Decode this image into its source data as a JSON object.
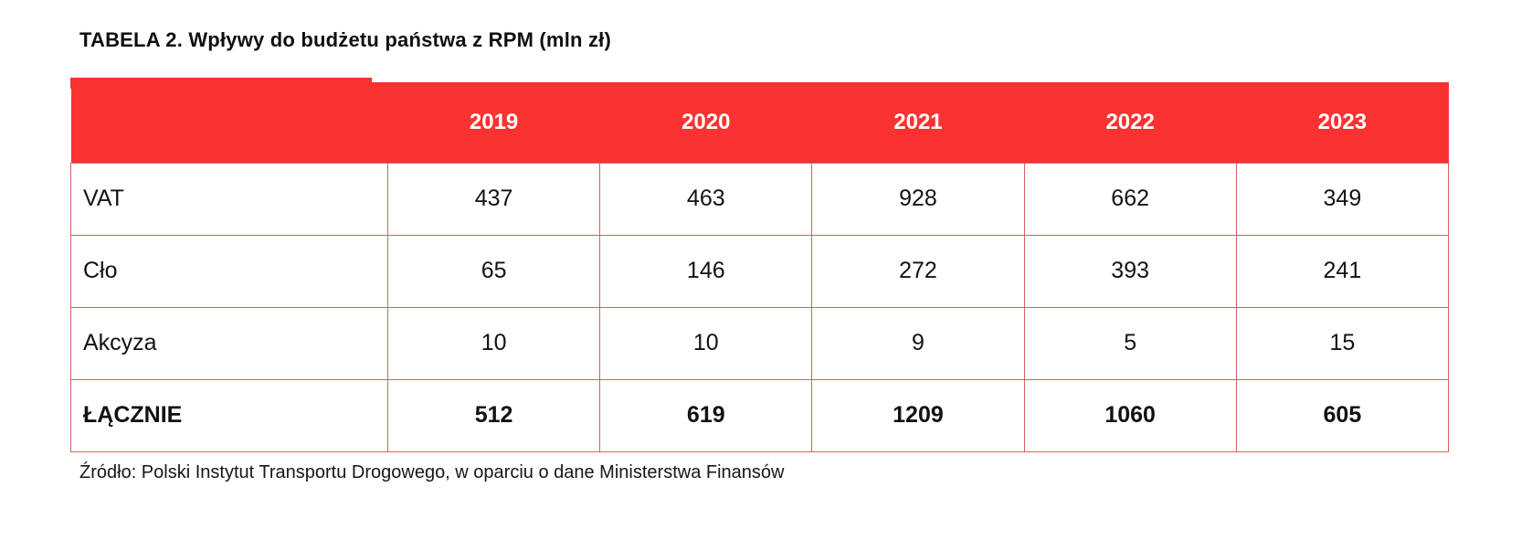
{
  "title": "TABELA 2. Wpływy do budżetu państwa z RPM (mln zł)",
  "source": "Źródło: Polski Instytut Transportu Drogowego, w oparciu o dane Ministerstwa Finansów",
  "colors": {
    "header_bg": "#FA3232",
    "grid": "#D55F5F",
    "header_text": "#FFFFFF",
    "body_text": "#121212"
  },
  "chart_data": {
    "type": "table",
    "title": "TABELA 2. Wpływy do budżetu państwa z RPM (mln zł)",
    "categories": [
      "2019",
      "2020",
      "2021",
      "2022",
      "2023"
    ],
    "series": [
      {
        "name": "VAT",
        "values": [
          437,
          463,
          928,
          662,
          349
        ],
        "emphasis": false
      },
      {
        "name": "Cło",
        "values": [
          65,
          146,
          272,
          393,
          241
        ],
        "emphasis": false
      },
      {
        "name": "Akcyza",
        "values": [
          10,
          10,
          9,
          5,
          15
        ],
        "emphasis": false
      },
      {
        "name": "ŁĄCZNIE",
        "values": [
          512,
          619,
          1209,
          1060,
          605
        ],
        "emphasis": true
      }
    ],
    "source": "Źródło: Polski Instytut Transportu Drogowego, w oparciu o dane Ministerstwa Finansów"
  }
}
